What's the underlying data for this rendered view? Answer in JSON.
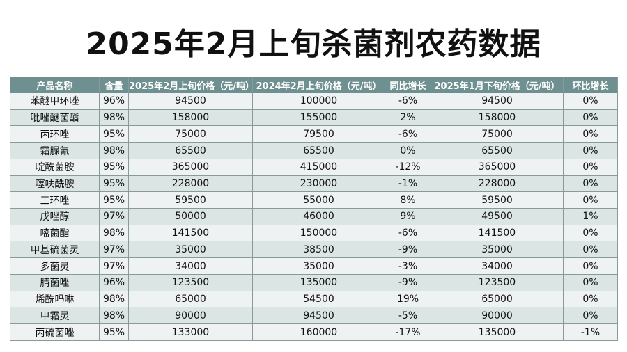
{
  "title": "2025年2月上旬杀菌剂农药数据",
  "chart_data": {
    "type": "table",
    "title": "2025年2月上旬杀菌剂农药数据",
    "columns": [
      "产品名称",
      "含量",
      "2025年2月上旬价格（元/吨）",
      "2024年2月上旬价格（元/吨）",
      "同比增长",
      "2025年1月下旬价格（元/吨）",
      "环比增长"
    ],
    "rows": [
      [
        "苯醚甲环唑",
        "96%",
        "94500",
        "100000",
        "-6%",
        "94500",
        "0%"
      ],
      [
        "吡唑醚菌酯",
        "98%",
        "158000",
        "155000",
        "2%",
        "158000",
        "0%"
      ],
      [
        "丙环唑",
        "95%",
        "75000",
        "79500",
        "-6%",
        "75000",
        "0%"
      ],
      [
        "霜脲氰",
        "98%",
        "65500",
        "65500",
        "0%",
        "65500",
        "0%"
      ],
      [
        "啶酰菌胺",
        "95%",
        "365000",
        "415000",
        "-12%",
        "365000",
        "0%"
      ],
      [
        "噻呋酰胺",
        "95%",
        "228000",
        "230000",
        "-1%",
        "228000",
        "0%"
      ],
      [
        "三环唑",
        "95%",
        "59500",
        "55000",
        "8%",
        "59500",
        "0%"
      ],
      [
        "戊唑醇",
        "97%",
        "50000",
        "46000",
        "9%",
        "49500",
        "1%"
      ],
      [
        "嘧菌酯",
        "98%",
        "141500",
        "150000",
        "-6%",
        "141500",
        "0%"
      ],
      [
        "甲基硫菌灵",
        "97%",
        "35000",
        "38500",
        "-9%",
        "35000",
        "0%"
      ],
      [
        "多菌灵",
        "97%",
        "34000",
        "35000",
        "-3%",
        "34000",
        "0%"
      ],
      [
        "腈菌唑",
        "96%",
        "123500",
        "135000",
        "-9%",
        "123500",
        "0%"
      ],
      [
        "烯酰吗啉",
        "98%",
        "65000",
        "54500",
        "19%",
        "65000",
        "0%"
      ],
      [
        "甲霜灵",
        "98%",
        "90000",
        "94500",
        "-5%",
        "90000",
        "0%"
      ],
      [
        "丙硫菌唑",
        "95%",
        "133000",
        "160000",
        "-17%",
        "135000",
        "-1%"
      ]
    ]
  }
}
